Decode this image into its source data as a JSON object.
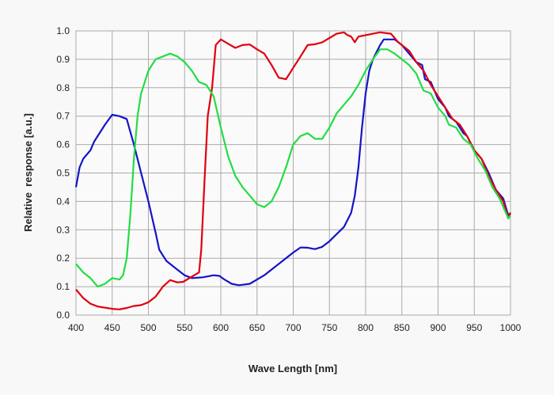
{
  "chart_data": {
    "type": "line",
    "title": "",
    "xlabel": "Wave Length [nm]",
    "ylabel": "Relative  response [a.u.]",
    "xlim": [
      400,
      1000
    ],
    "ylim": [
      0,
      1.0
    ],
    "xticks": [
      "400",
      "450",
      "500",
      "550",
      "600",
      "650",
      "700",
      "750",
      "800",
      "850",
      "900",
      "950",
      "1000"
    ],
    "yticks": [
      "0.0",
      "0.1",
      "0.2",
      "0.3",
      "0.4",
      "0.5",
      "0.6",
      "0.7",
      "0.8",
      "0.9",
      "1.0"
    ],
    "grid": true,
    "legend": "none",
    "series": [
      {
        "color": "#1414c8",
        "points": [
          [
            400,
            0.45
          ],
          [
            405,
            0.52
          ],
          [
            410,
            0.55
          ],
          [
            420,
            0.58
          ],
          [
            425,
            0.61
          ],
          [
            440,
            0.67
          ],
          [
            450,
            0.705
          ],
          [
            460,
            0.7
          ],
          [
            470,
            0.69
          ],
          [
            480,
            0.6
          ],
          [
            490,
            0.5
          ],
          [
            500,
            0.4
          ],
          [
            510,
            0.29
          ],
          [
            515,
            0.23
          ],
          [
            525,
            0.19
          ],
          [
            540,
            0.16
          ],
          [
            550,
            0.14
          ],
          [
            560,
            0.13
          ],
          [
            575,
            0.133
          ],
          [
            590,
            0.14
          ],
          [
            598,
            0.138
          ],
          [
            605,
            0.125
          ],
          [
            615,
            0.11
          ],
          [
            625,
            0.105
          ],
          [
            640,
            0.11
          ],
          [
            660,
            0.14
          ],
          [
            680,
            0.18
          ],
          [
            700,
            0.22
          ],
          [
            710,
            0.238
          ],
          [
            720,
            0.237
          ],
          [
            730,
            0.232
          ],
          [
            740,
            0.24
          ],
          [
            750,
            0.26
          ],
          [
            760,
            0.285
          ],
          [
            770,
            0.31
          ],
          [
            780,
            0.36
          ],
          [
            785,
            0.42
          ],
          [
            790,
            0.52
          ],
          [
            795,
            0.66
          ],
          [
            800,
            0.78
          ],
          [
            805,
            0.86
          ],
          [
            810,
            0.9
          ],
          [
            820,
            0.95
          ],
          [
            825,
            0.97
          ],
          [
            840,
            0.97
          ],
          [
            850,
            0.95
          ],
          [
            860,
            0.92
          ],
          [
            870,
            0.89
          ],
          [
            878,
            0.88
          ],
          [
            882,
            0.83
          ],
          [
            890,
            0.82
          ],
          [
            900,
            0.76
          ],
          [
            910,
            0.73
          ],
          [
            915,
            0.7
          ],
          [
            925,
            0.68
          ],
          [
            935,
            0.64
          ],
          [
            940,
            0.63
          ],
          [
            950,
            0.58
          ],
          [
            960,
            0.55
          ],
          [
            970,
            0.5
          ],
          [
            980,
            0.44
          ],
          [
            990,
            0.41
          ],
          [
            997,
            0.35
          ],
          [
            1000,
            0.36
          ]
        ]
      },
      {
        "color": "#e00010",
        "points": [
          [
            400,
            0.09
          ],
          [
            410,
            0.06
          ],
          [
            420,
            0.04
          ],
          [
            430,
            0.03
          ],
          [
            450,
            0.022
          ],
          [
            460,
            0.02
          ],
          [
            470,
            0.025
          ],
          [
            480,
            0.032
          ],
          [
            490,
            0.035
          ],
          [
            500,
            0.045
          ],
          [
            510,
            0.065
          ],
          [
            520,
            0.1
          ],
          [
            530,
            0.123
          ],
          [
            540,
            0.115
          ],
          [
            548,
            0.117
          ],
          [
            560,
            0.135
          ],
          [
            570,
            0.15
          ],
          [
            573,
            0.23
          ],
          [
            578,
            0.5
          ],
          [
            582,
            0.7
          ],
          [
            588,
            0.8
          ],
          [
            593,
            0.95
          ],
          [
            600,
            0.97
          ],
          [
            610,
            0.955
          ],
          [
            620,
            0.94
          ],
          [
            630,
            0.95
          ],
          [
            640,
            0.952
          ],
          [
            650,
            0.935
          ],
          [
            660,
            0.92
          ],
          [
            670,
            0.88
          ],
          [
            680,
            0.835
          ],
          [
            690,
            0.83
          ],
          [
            700,
            0.87
          ],
          [
            710,
            0.91
          ],
          [
            720,
            0.95
          ],
          [
            730,
            0.953
          ],
          [
            740,
            0.96
          ],
          [
            750,
            0.975
          ],
          [
            760,
            0.99
          ],
          [
            770,
            0.995
          ],
          [
            775,
            0.985
          ],
          [
            780,
            0.98
          ],
          [
            785,
            0.96
          ],
          [
            790,
            0.98
          ],
          [
            800,
            0.985
          ],
          [
            810,
            0.99
          ],
          [
            820,
            0.995
          ],
          [
            835,
            0.99
          ],
          [
            845,
            0.96
          ],
          [
            860,
            0.93
          ],
          [
            870,
            0.89
          ],
          [
            880,
            0.86
          ],
          [
            890,
            0.81
          ],
          [
            900,
            0.77
          ],
          [
            910,
            0.73
          ],
          [
            920,
            0.69
          ],
          [
            930,
            0.67
          ],
          [
            940,
            0.63
          ],
          [
            950,
            0.58
          ],
          [
            960,
            0.55
          ],
          [
            970,
            0.49
          ],
          [
            980,
            0.44
          ],
          [
            990,
            0.4
          ],
          [
            997,
            0.34
          ],
          [
            1000,
            0.36
          ]
        ]
      },
      {
        "color": "#22dd44",
        "points": [
          [
            400,
            0.18
          ],
          [
            410,
            0.15
          ],
          [
            420,
            0.13
          ],
          [
            430,
            0.1
          ],
          [
            440,
            0.11
          ],
          [
            450,
            0.13
          ],
          [
            460,
            0.125
          ],
          [
            465,
            0.14
          ],
          [
            470,
            0.2
          ],
          [
            475,
            0.35
          ],
          [
            480,
            0.55
          ],
          [
            485,
            0.7
          ],
          [
            490,
            0.78
          ],
          [
            500,
            0.86
          ],
          [
            510,
            0.9
          ],
          [
            520,
            0.91
          ],
          [
            530,
            0.92
          ],
          [
            540,
            0.91
          ],
          [
            550,
            0.89
          ],
          [
            560,
            0.86
          ],
          [
            570,
            0.82
          ],
          [
            580,
            0.81
          ],
          [
            590,
            0.77
          ],
          [
            600,
            0.66
          ],
          [
            610,
            0.56
          ],
          [
            620,
            0.49
          ],
          [
            630,
            0.45
          ],
          [
            640,
            0.42
          ],
          [
            650,
            0.39
          ],
          [
            660,
            0.38
          ],
          [
            670,
            0.4
          ],
          [
            680,
            0.45
          ],
          [
            690,
            0.52
          ],
          [
            700,
            0.6
          ],
          [
            710,
            0.63
          ],
          [
            720,
            0.64
          ],
          [
            730,
            0.62
          ],
          [
            740,
            0.62
          ],
          [
            750,
            0.66
          ],
          [
            760,
            0.71
          ],
          [
            770,
            0.74
          ],
          [
            780,
            0.77
          ],
          [
            790,
            0.81
          ],
          [
            800,
            0.86
          ],
          [
            810,
            0.9
          ],
          [
            820,
            0.935
          ],
          [
            830,
            0.935
          ],
          [
            840,
            0.92
          ],
          [
            850,
            0.9
          ],
          [
            860,
            0.88
          ],
          [
            870,
            0.85
          ],
          [
            880,
            0.79
          ],
          [
            890,
            0.78
          ],
          [
            900,
            0.73
          ],
          [
            910,
            0.7
          ],
          [
            915,
            0.67
          ],
          [
            925,
            0.66
          ],
          [
            935,
            0.62
          ],
          [
            945,
            0.6
          ],
          [
            955,
            0.55
          ],
          [
            965,
            0.51
          ],
          [
            975,
            0.45
          ],
          [
            985,
            0.41
          ],
          [
            997,
            0.34
          ],
          [
            1000,
            0.35
          ]
        ]
      }
    ]
  }
}
